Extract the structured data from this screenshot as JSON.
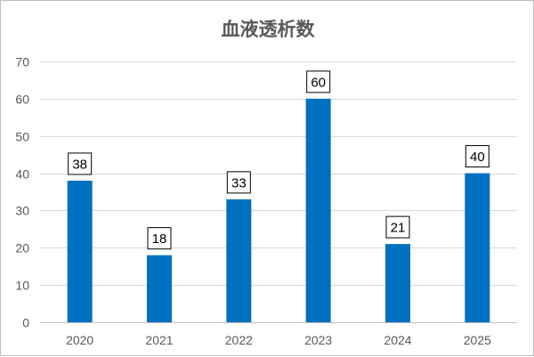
{
  "chart_data": {
    "type": "bar",
    "title": "血液透析数",
    "xlabel": "",
    "ylabel": "",
    "categories": [
      "2020",
      "2021",
      "2022",
      "2023",
      "2024",
      "2025"
    ],
    "values": [
      38,
      18,
      33,
      60,
      21,
      40
    ],
    "ylim": [
      0,
      70
    ],
    "yticks": [
      0,
      10,
      20,
      30,
      40,
      50,
      60,
      70
    ],
    "grid": true,
    "legend": "none",
    "bar_color": "#0070C0",
    "data_labels": "boxed"
  }
}
